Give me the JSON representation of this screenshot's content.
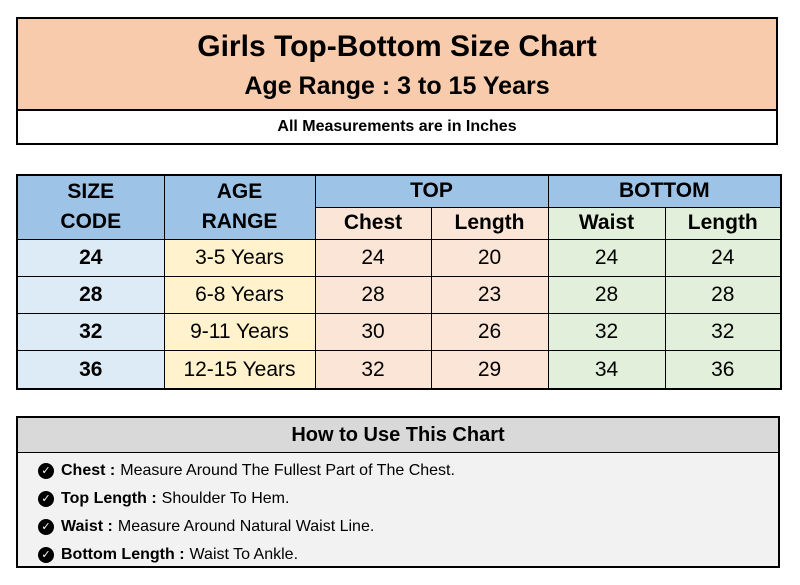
{
  "header": {
    "title": "Girls Top-Bottom Size Chart",
    "subtitle": "Age Range : 3 to 15 Years",
    "note": "All Measurements are in Inches"
  },
  "table": {
    "headers": {
      "size_code_1": "SIZE",
      "size_code_2": "CODE",
      "age_range_1": "AGE",
      "age_range_2": "RANGE",
      "top": "TOP",
      "bottom": "BOTTOM",
      "chest": "Chest",
      "top_length": "Length",
      "waist": "Waist",
      "bottom_length": "Length"
    },
    "rows": [
      {
        "size": "24",
        "age": "3-5 Years",
        "chest": "24",
        "top_length": "20",
        "waist": "24",
        "bottom_length": "24"
      },
      {
        "size": "28",
        "age": "6-8 Years",
        "chest": "28",
        "top_length": "23",
        "waist": "28",
        "bottom_length": "28"
      },
      {
        "size": "32",
        "age": "9-11 Years",
        "chest": "30",
        "top_length": "26",
        "waist": "32",
        "bottom_length": "32"
      },
      {
        "size": "36",
        "age": "12-15 Years",
        "chest": "32",
        "top_length": "29",
        "waist": "34",
        "bottom_length": "36"
      }
    ]
  },
  "how_to": {
    "title": "How to Use This Chart",
    "items": [
      {
        "term": "Chest :",
        "text": "Measure Around The Fullest Part of The Chest."
      },
      {
        "term": "Top Length :",
        "text": "Shoulder To Hem."
      },
      {
        "term": "Waist :",
        "text": "Measure Around Natural Waist Line."
      },
      {
        "term": "Bottom Length :",
        "text": "Waist To Ankle."
      }
    ]
  },
  "icons": {
    "bullet": "check-circle-icon"
  }
}
